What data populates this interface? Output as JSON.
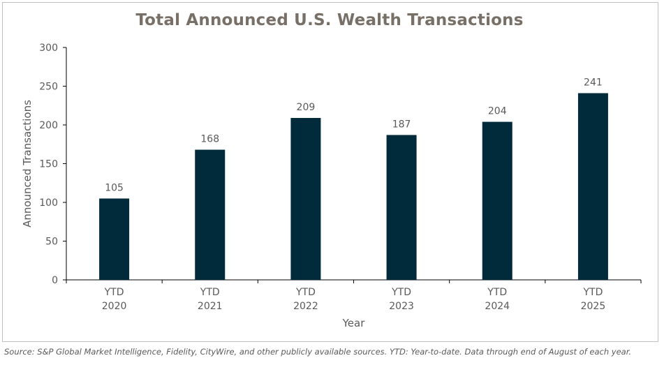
{
  "chart_data": {
    "type": "bar",
    "title": "Total Announced U.S. Wealth Transactions",
    "xlabel": "Year",
    "ylabel": "Announced Transactions",
    "categories": [
      [
        "YTD",
        "2020"
      ],
      [
        "YTD",
        "2021"
      ],
      [
        "YTD",
        "2022"
      ],
      [
        "YTD",
        "2023"
      ],
      [
        "YTD",
        "2024"
      ],
      [
        "YTD",
        "2025"
      ]
    ],
    "values": [
      105,
      168,
      209,
      187,
      204,
      241
    ],
    "ylim": [
      0,
      300
    ],
    "yticks": [
      0,
      50,
      100,
      150,
      200,
      250,
      300
    ],
    "data_labels": true,
    "grid": false,
    "bar_color": "#012a3a"
  },
  "footer": {
    "source": "Source: S&P Global Market Intelligence, Fidelity, CityWire, and other publicly available sources. YTD: Year-to-date. Data through end of August of each year."
  },
  "colors": {
    "title": "#786f66",
    "axis_text": "#595959",
    "axis_line": "#000000"
  }
}
